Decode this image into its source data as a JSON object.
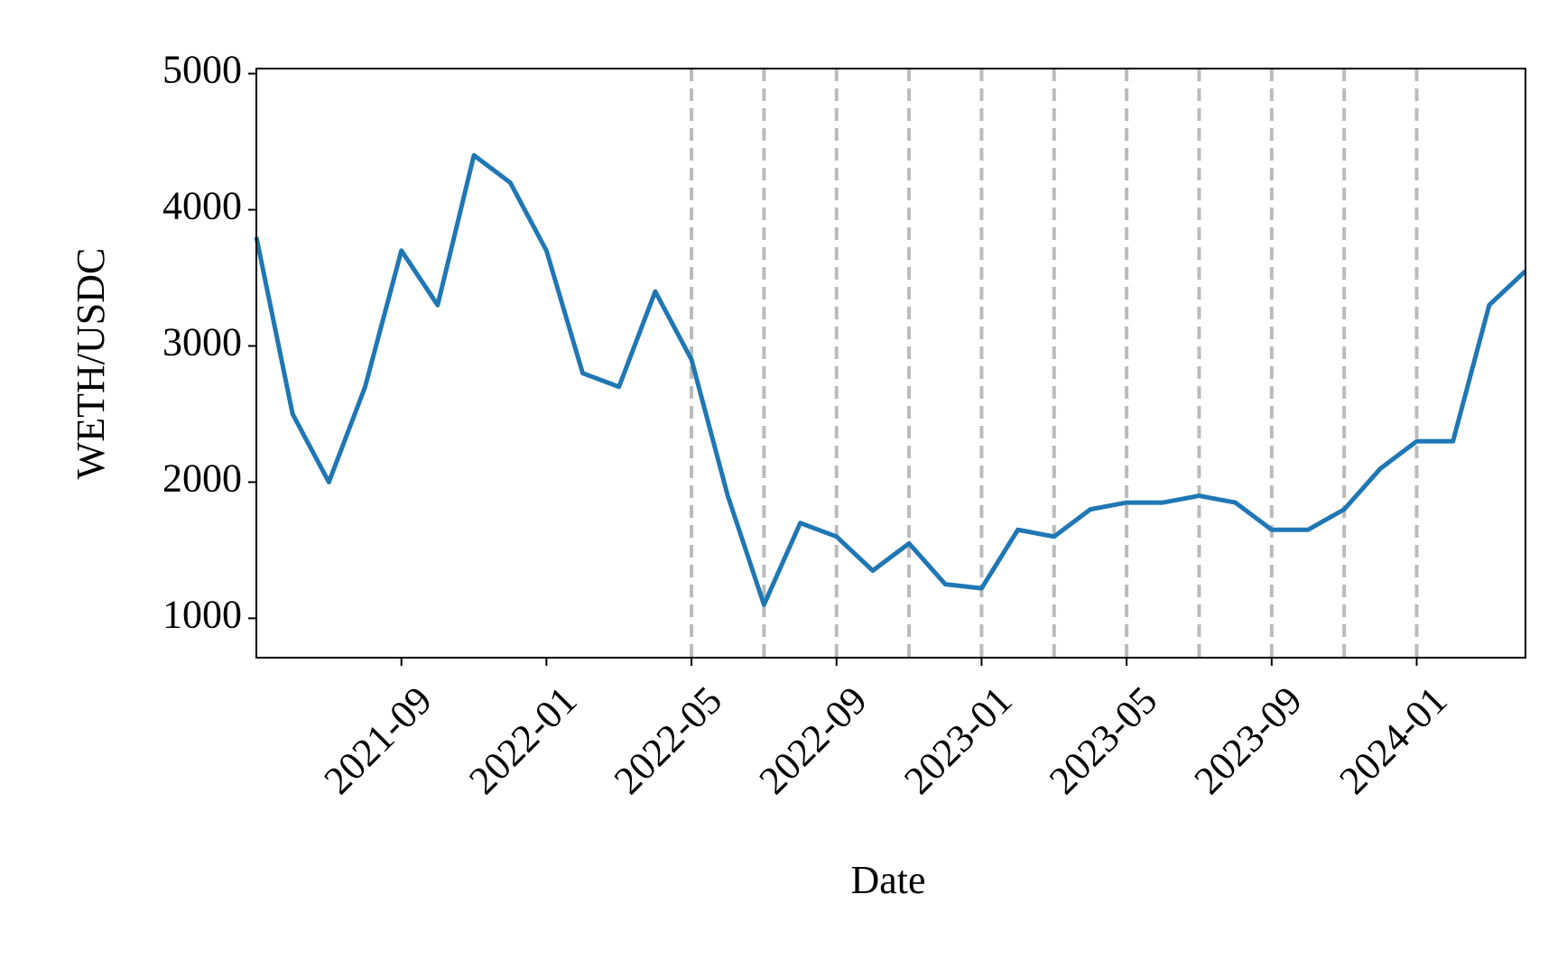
{
  "chart_data": {
    "type": "line",
    "x_label": "Date",
    "y_label": "WETH/USDC",
    "x": [
      "2021-05",
      "2021-06",
      "2021-07",
      "2021-08",
      "2021-09",
      "2021-10",
      "2021-11",
      "2021-12",
      "2022-01",
      "2022-02",
      "2022-03",
      "2022-04",
      "2022-05",
      "2022-06",
      "2022-07",
      "2022-08",
      "2022-09",
      "2022-10",
      "2022-11",
      "2022-12",
      "2023-01",
      "2023-02",
      "2023-03",
      "2023-04",
      "2023-05",
      "2023-06",
      "2023-07",
      "2023-08",
      "2023-09",
      "2023-10",
      "2023-11",
      "2023-12",
      "2024-01",
      "2024-02",
      "2024-03",
      "2024-04"
    ],
    "values": [
      3800,
      2500,
      2000,
      2700,
      3700,
      3300,
      4400,
      4200,
      3700,
      2800,
      2700,
      3400,
      2900,
      1900,
      1100,
      1700,
      1600,
      1350,
      1550,
      1250,
      1220,
      1650,
      1600,
      1800,
      1850,
      1850,
      1900,
      1850,
      1650,
      1650,
      1800,
      2100,
      2300,
      2300,
      3300,
      3550
    ],
    "color": "#1f77b4",
    "xlim": [
      "2021-05",
      "2024-04"
    ],
    "xticks": [
      "2021-09",
      "2022-01",
      "2022-05",
      "2022-09",
      "2023-01",
      "2023-05",
      "2023-09",
      "2024-01"
    ],
    "ylim": [
      711,
      5037
    ],
    "yticks": [
      1000,
      2000,
      3000,
      4000,
      5000
    ],
    "vlines": [
      "2022-05",
      "2022-07",
      "2022-09",
      "2022-11",
      "2023-01",
      "2023-03",
      "2023-05",
      "2023-07",
      "2023-09",
      "2023-11",
      "2024-01"
    ],
    "vline_color": "#bbbbbb"
  }
}
